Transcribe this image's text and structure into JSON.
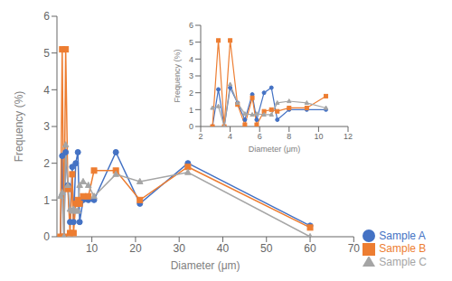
{
  "chart_data": [
    {
      "type": "line",
      "xlabel": "Diameter (μm)",
      "ylabel": "Frequency (%)",
      "xlim": [
        2,
        70
      ],
      "ylim": [
        0,
        6
      ],
      "xticks": [
        10,
        20,
        30,
        40,
        50,
        60,
        70
      ],
      "yticks": [
        0,
        1,
        2,
        3,
        4,
        5,
        6
      ],
      "legend": "lower right",
      "x": [
        2.8,
        3.2,
        3.6,
        4.0,
        4.5,
        5.0,
        5.5,
        5.8,
        6.3,
        6.8,
        7.2,
        8.0,
        9.2,
        10.5,
        15.5,
        21.0,
        32.0,
        60.0
      ],
      "series": [
        {
          "name": "Sample A",
          "color": "#4472C4",
          "marker": "circle",
          "values": [
            0.0,
            2.2,
            0.0,
            2.3,
            1.4,
            0.4,
            1.9,
            0.4,
            2.0,
            2.3,
            0.4,
            1.0,
            1.0,
            1.0,
            2.3,
            0.9,
            2.0,
            0.3
          ]
        },
        {
          "name": "Sample B",
          "color": "#ED7D31",
          "marker": "square",
          "values": [
            0.0,
            5.1,
            0.0,
            5.1,
            1.3,
            0.1,
            1.7,
            0.1,
            0.9,
            1.0,
            0.9,
            1.1,
            1.1,
            1.8,
            1.8,
            1.0,
            1.9,
            0.25
          ]
        },
        {
          "name": "Sample C",
          "color": "#A5A5A5",
          "marker": "triangle",
          "values": [
            1.1,
            1.2,
            0.0,
            2.5,
            1.4,
            0.75,
            0.7,
            0.75,
            0.7,
            0.7,
            1.4,
            1.5,
            1.4,
            1.1,
            1.7,
            1.5,
            1.75,
            0.0
          ]
        }
      ]
    },
    {
      "type": "line",
      "xlabel": "Diameter (μm)",
      "ylabel": "Frequency (%)",
      "xlim": [
        2,
        12
      ],
      "ylim": [
        0,
        6
      ],
      "xticks": [
        2,
        4,
        6,
        8,
        10,
        12
      ],
      "yticks": [
        0,
        1,
        2,
        3,
        4,
        5,
        6
      ],
      "x": [
        2.8,
        3.2,
        3.6,
        4.0,
        4.5,
        5.0,
        5.5,
        5.8,
        6.3,
        6.8,
        7.2,
        8.0,
        9.2,
        10.5
      ],
      "series": [
        {
          "color": "#4472C4",
          "marker": "circle",
          "values": [
            0.0,
            2.2,
            0.0,
            2.3,
            1.4,
            0.4,
            1.9,
            0.4,
            2.0,
            2.3,
            0.4,
            1.0,
            1.0,
            1.0
          ]
        },
        {
          "color": "#ED7D31",
          "marker": "square",
          "values": [
            0.0,
            5.1,
            0.0,
            5.1,
            1.3,
            0.1,
            1.7,
            0.1,
            0.9,
            1.0,
            0.9,
            1.1,
            1.1,
            1.8
          ]
        },
        {
          "color": "#A5A5A5",
          "marker": "triangle",
          "values": [
            1.1,
            1.2,
            0.0,
            2.5,
            1.4,
            0.75,
            0.7,
            0.75,
            0.7,
            0.7,
            1.4,
            1.5,
            1.4,
            1.1
          ]
        }
      ]
    }
  ]
}
